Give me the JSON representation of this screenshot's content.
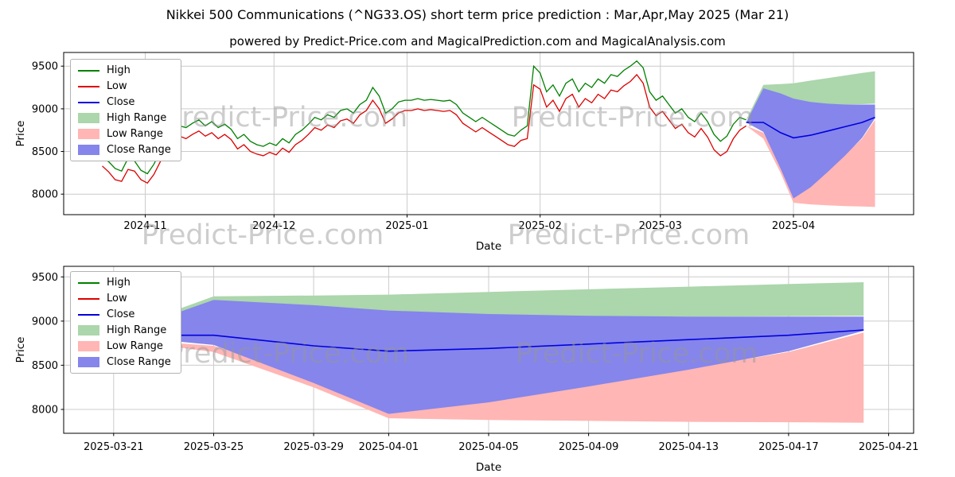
{
  "title": "Nikkei 500 Communications (^NG33.OS) short term price prediction : Mar,Apr,May 2025 (Mar 21)",
  "subtitle": "powered by Predict-Price.com and MagicalPrediction.com and MagicalAnalysis.com",
  "watermark": "Predict-Price.com",
  "colors": {
    "high": "#008000",
    "low": "#dd0000",
    "close": "#0000dd",
    "high_range": "#acd6ac",
    "low_range": "#ffb6b4",
    "close_range": "#8585ec",
    "grid": "#cccccc"
  },
  "chart_data": [
    {
      "type": "line",
      "xlabel": "Date",
      "ylabel": "Price",
      "xlim": [
        "2024-10-13",
        "2025-04-29"
      ],
      "ylim": [
        7760,
        9660
      ],
      "yticks": [
        8000,
        8500,
        9000,
        9500
      ],
      "xticks": [
        {
          "date": "2024-11-01",
          "label": "2024-11"
        },
        {
          "date": "2024-12-01",
          "label": "2024-12"
        },
        {
          "date": "2025-01-01",
          "label": "2025-01"
        },
        {
          "date": "2025-02-01",
          "label": "2025-02"
        },
        {
          "date": "2025-03-01",
          "label": "2025-03"
        },
        {
          "date": "2025-04-01",
          "label": "2025-04"
        }
      ],
      "legend": [
        {
          "label": "High",
          "kind": "line",
          "color": "#008000"
        },
        {
          "label": "Low",
          "kind": "line",
          "color": "#dd0000"
        },
        {
          "label": "Close",
          "kind": "line",
          "color": "#0000dd"
        },
        {
          "label": "High Range",
          "kind": "patch",
          "color": "#acd6ac"
        },
        {
          "label": "Low Range",
          "kind": "patch",
          "color": "#ffb6b4"
        },
        {
          "label": "Close Range",
          "kind": "patch",
          "color": "#8585ec"
        }
      ],
      "historical": {
        "start_date": "2024-10-22",
        "step_days": 1.5,
        "high": [
          8430,
          8380,
          8300,
          8270,
          8420,
          8390,
          8280,
          8240,
          8350,
          8500,
          8650,
          8750,
          8800,
          8780,
          8830,
          8870,
          8800,
          8850,
          8780,
          8820,
          8760,
          8650,
          8700,
          8620,
          8580,
          8560,
          8600,
          8570,
          8650,
          8600,
          8700,
          8750,
          8820,
          8900,
          8870,
          8930,
          8900,
          8980,
          9000,
          8950,
          9050,
          9100,
          9250,
          9150,
          8950,
          9000,
          9080,
          9100,
          9100,
          9120,
          9100,
          9110,
          9100,
          9090,
          9100,
          9050,
          8950,
          8900,
          8850,
          8900,
          8850,
          8800,
          8750,
          8700,
          8680,
          8750,
          8800,
          9500,
          9420,
          9200,
          9280,
          9150,
          9300,
          9350,
          9200,
          9300,
          9250,
          9350,
          9300,
          9400,
          9380,
          9450,
          9500,
          9560,
          9480,
          9200,
          9100,
          9150,
          9050,
          8950,
          9000,
          8900,
          8850,
          8950,
          8850,
          8700,
          8620,
          8680,
          8820,
          8900,
          8870
        ],
        "low": [
          8330,
          8260,
          8170,
          8150,
          8290,
          8270,
          8170,
          8130,
          8230,
          8380,
          8520,
          8620,
          8680,
          8650,
          8700,
          8740,
          8680,
          8720,
          8650,
          8700,
          8640,
          8530,
          8580,
          8500,
          8470,
          8450,
          8490,
          8460,
          8540,
          8490,
          8580,
          8630,
          8700,
          8780,
          8750,
          8810,
          8780,
          8860,
          8880,
          8830,
          8930,
          8980,
          9100,
          9000,
          8830,
          8880,
          8950,
          8980,
          8980,
          9000,
          8980,
          8990,
          8980,
          8970,
          8980,
          8930,
          8830,
          8780,
          8730,
          8780,
          8730,
          8680,
          8630,
          8580,
          8560,
          8630,
          8650,
          9280,
          9230,
          9020,
          9100,
          8970,
          9120,
          9170,
          9020,
          9120,
          9070,
          9170,
          9120,
          9220,
          9200,
          9270,
          9320,
          9400,
          9300,
          9020,
          8920,
          8970,
          8870,
          8770,
          8820,
          8720,
          8670,
          8770,
          8670,
          8520,
          8450,
          8500,
          8650,
          8750,
          8800
        ]
      },
      "prediction": {
        "dates": [
          "2025-03-21",
          "2025-03-25",
          "2025-03-29",
          "2025-04-01",
          "2025-04-05",
          "2025-04-09",
          "2025-04-13",
          "2025-04-17",
          "2025-04-20"
        ],
        "close": [
          8840,
          8840,
          8720,
          8660,
          8690,
          8740,
          8790,
          8840,
          8900
        ],
        "high_range": {
          "upper": [
            8870,
            9280,
            9290,
            9300,
            9330,
            9360,
            9390,
            9420,
            9440
          ],
          "lower": [
            8870,
            9040,
            9040,
            9045,
            9050,
            9050,
            9050,
            9055,
            9060
          ]
        },
        "low_range": {
          "upper": [
            8800,
            8720,
            8350,
            8000,
            8150,
            8300,
            8460,
            8650,
            8870
          ],
          "lower": [
            8800,
            8650,
            8250,
            7900,
            7880,
            7870,
            7860,
            7855,
            7850
          ]
        },
        "close_range": {
          "upper": [
            8840,
            9240,
            9180,
            9120,
            9080,
            9060,
            9050,
            9050,
            9050
          ],
          "lower": [
            8840,
            8730,
            8300,
            7950,
            8080,
            8260,
            8450,
            8660,
            8890
          ]
        }
      }
    },
    {
      "type": "area",
      "xlabel": "Date",
      "ylabel": "Price",
      "xlim": [
        "2025-03-19",
        "2025-04-22"
      ],
      "ylim": [
        7730,
        9620
      ],
      "yticks": [
        8000,
        8500,
        9000,
        9500
      ],
      "xticks": [
        {
          "date": "2025-03-21",
          "label": "2025-03-21"
        },
        {
          "date": "2025-03-25",
          "label": "2025-03-25"
        },
        {
          "date": "2025-03-29",
          "label": "2025-03-29"
        },
        {
          "date": "2025-04-01",
          "label": "2025-04-01"
        },
        {
          "date": "2025-04-05",
          "label": "2025-04-05"
        },
        {
          "date": "2025-04-09",
          "label": "2025-04-09"
        },
        {
          "date": "2025-04-13",
          "label": "2025-04-13"
        },
        {
          "date": "2025-04-17",
          "label": "2025-04-17"
        },
        {
          "date": "2025-04-21",
          "label": "2025-04-21"
        }
      ],
      "legend": [
        {
          "label": "High",
          "kind": "line",
          "color": "#008000"
        },
        {
          "label": "Low",
          "kind": "line",
          "color": "#dd0000"
        },
        {
          "label": "Close",
          "kind": "line",
          "color": "#0000dd"
        },
        {
          "label": "High Range",
          "kind": "patch",
          "color": "#acd6ac"
        },
        {
          "label": "Low Range",
          "kind": "patch",
          "color": "#ffb6b4"
        },
        {
          "label": "Close Range",
          "kind": "patch",
          "color": "#8585ec"
        }
      ],
      "prediction": {
        "dates": [
          "2025-03-21",
          "2025-03-25",
          "2025-03-29",
          "2025-04-01",
          "2025-04-05",
          "2025-04-09",
          "2025-04-13",
          "2025-04-17",
          "2025-04-20"
        ],
        "close": [
          8840,
          8840,
          8720,
          8660,
          8690,
          8740,
          8790,
          8840,
          8900
        ],
        "high_range": {
          "upper": [
            8870,
            9280,
            9290,
            9300,
            9330,
            9360,
            9390,
            9420,
            9440
          ],
          "lower": [
            8870,
            9040,
            9040,
            9045,
            9050,
            9050,
            9050,
            9055,
            9060
          ]
        },
        "low_range": {
          "upper": [
            8800,
            8720,
            8350,
            8000,
            8150,
            8300,
            8460,
            8650,
            8870
          ],
          "lower": [
            8800,
            8650,
            8250,
            7900,
            7880,
            7870,
            7860,
            7855,
            7850
          ]
        },
        "close_range": {
          "upper": [
            8840,
            9240,
            9180,
            9120,
            9080,
            9060,
            9050,
            9050,
            9050
          ],
          "lower": [
            8840,
            8730,
            8300,
            7950,
            8080,
            8260,
            8450,
            8660,
            8890
          ]
        }
      }
    }
  ]
}
